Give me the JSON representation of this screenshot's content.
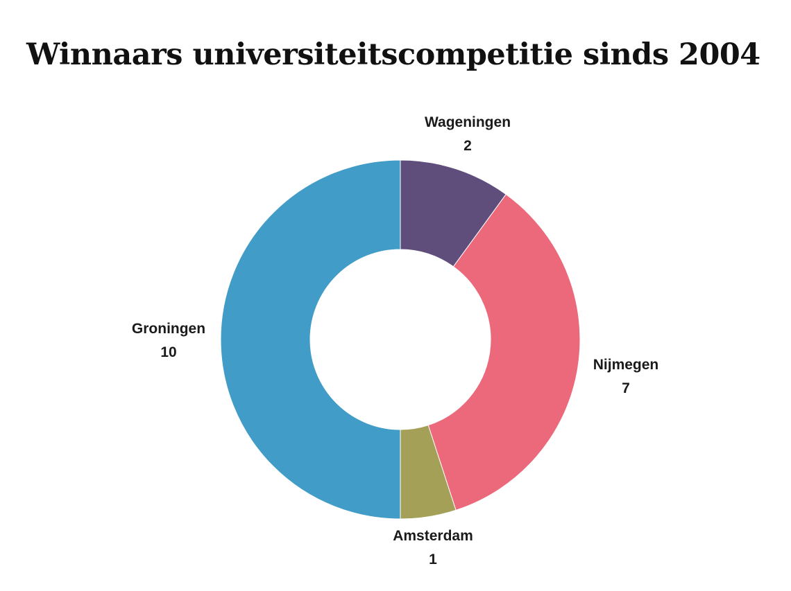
{
  "chart_data": {
    "type": "pie",
    "donut": true,
    "title": "Winnaars universiteitscompetitie sinds 2004",
    "slices": [
      {
        "label": "Wageningen",
        "value": 2,
        "color": "#5f4e7c"
      },
      {
        "label": "Nijmegen",
        "value": 7,
        "color": "#ec697c"
      },
      {
        "label": "Amsterdam",
        "value": 1,
        "color": "#a4a058"
      },
      {
        "label": "Groningen",
        "value": 10,
        "color": "#419cc8"
      }
    ],
    "start": "top",
    "direction": "clockwise",
    "legend": "none"
  }
}
